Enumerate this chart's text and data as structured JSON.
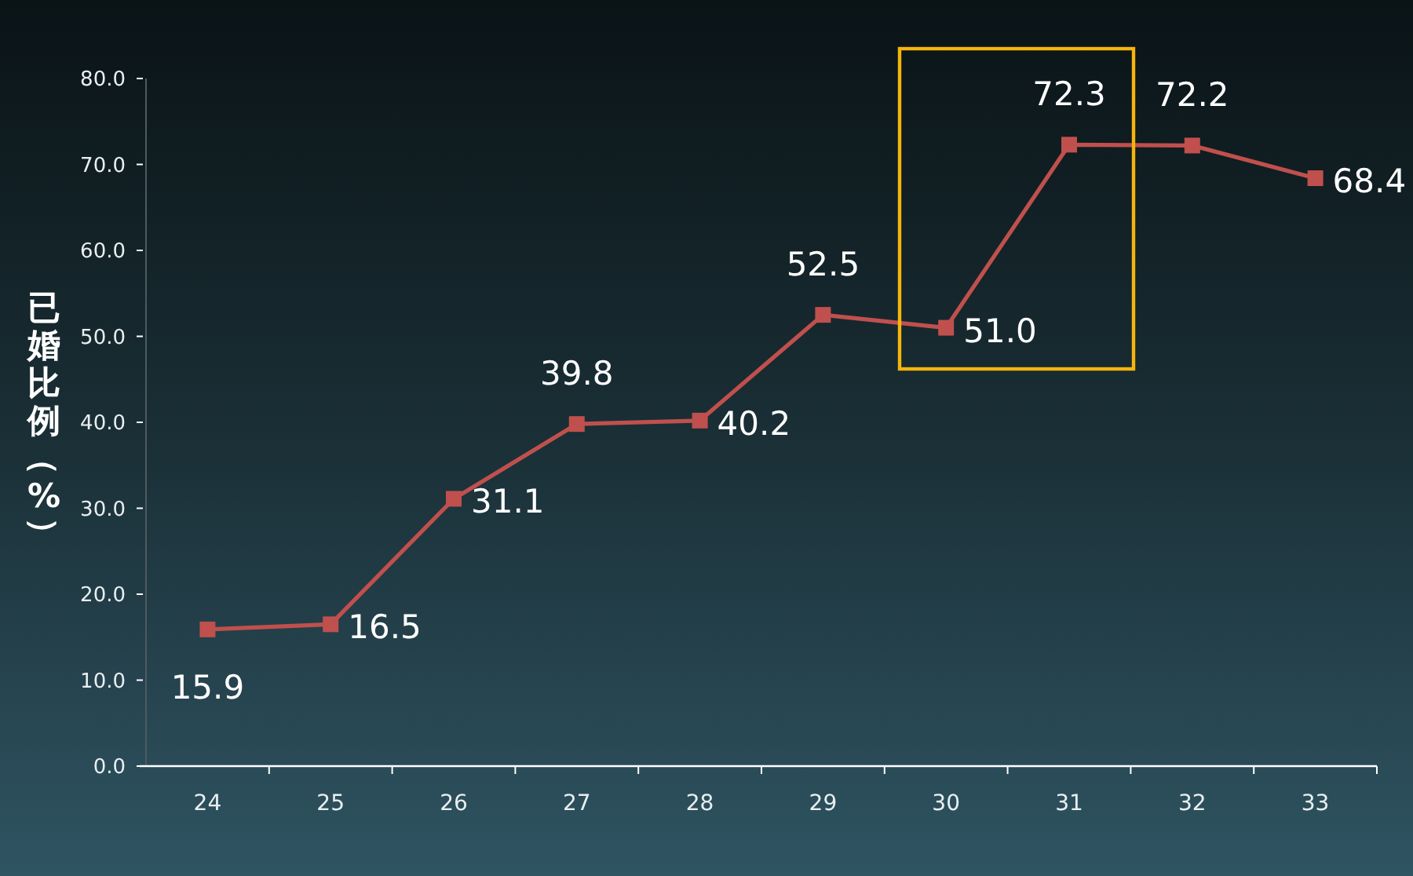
{
  "chart_data": {
    "type": "line",
    "ylabel": "已婚比例（%）",
    "categories": [
      "24",
      "25",
      "26",
      "27",
      "28",
      "29",
      "30",
      "31",
      "32",
      "33"
    ],
    "values": [
      15.9,
      16.5,
      31.1,
      39.8,
      40.2,
      52.5,
      51.0,
      72.3,
      72.2,
      68.4
    ],
    "value_labels": [
      "15.9",
      "16.5",
      "31.1",
      "39.8",
      "40.2",
      "52.5",
      "51.0",
      "72.3",
      "72.2",
      "68.4"
    ],
    "color": "#c0504d",
    "marker": "square",
    "line_style": "solid",
    "ylim": [
      0,
      80
    ],
    "yticks": [
      {
        "value": 0,
        "label": "0.0"
      },
      {
        "value": 10,
        "label": "10.0"
      },
      {
        "value": 20,
        "label": "20.0"
      },
      {
        "value": 30,
        "label": "30.0"
      },
      {
        "value": 40,
        "label": "40.0"
      },
      {
        "value": 50,
        "label": "50.0"
      },
      {
        "value": 60,
        "label": "60.0"
      },
      {
        "value": 70,
        "label": "70.0"
      },
      {
        "value": 80,
        "label": "80.0"
      }
    ]
  }
}
